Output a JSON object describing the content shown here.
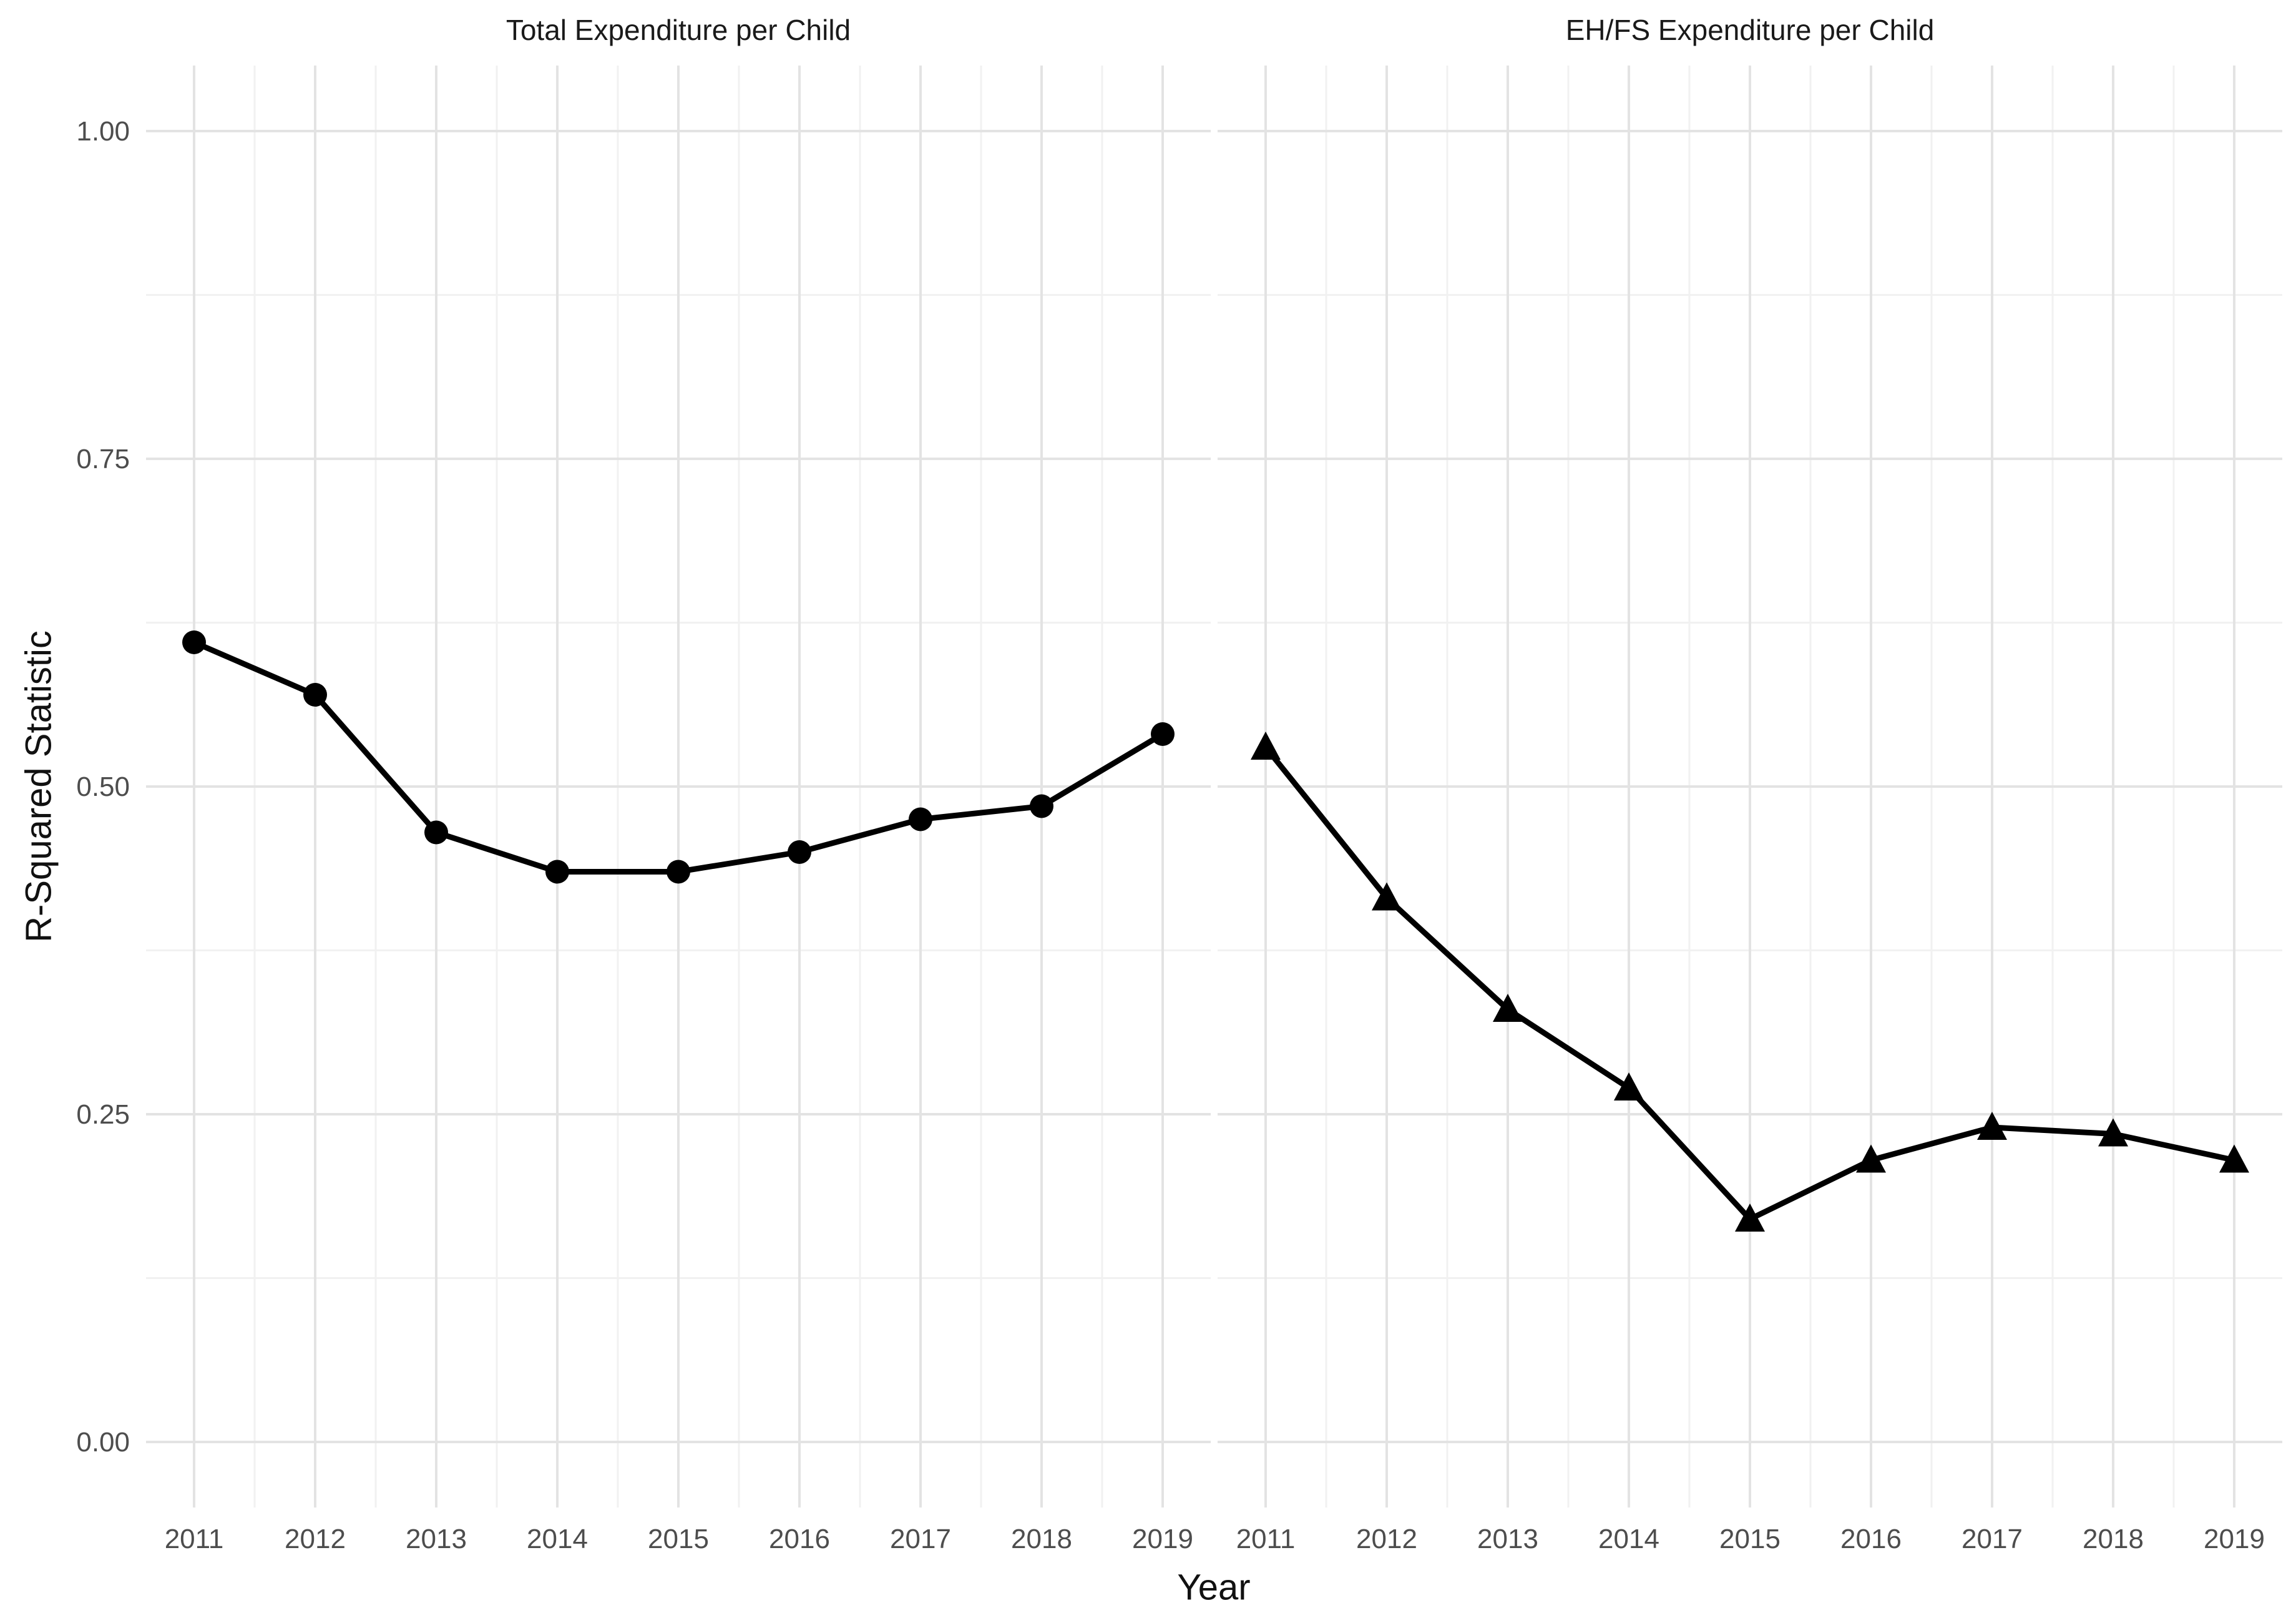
{
  "chart_data": {
    "type": "line",
    "title": "",
    "xlabel": "Year",
    "ylabel": "R-Squared Statistic",
    "facet_layout": "two panels side by side, shared y axis",
    "x_categories": [
      "2011",
      "2012",
      "2013",
      "2014",
      "2015",
      "2016",
      "2017",
      "2018",
      "2019"
    ],
    "y_ticks": [
      {
        "label": "1.00",
        "value": 1.0
      },
      {
        "label": "0.75",
        "value": 0.75
      },
      {
        "label": "0.50",
        "value": 0.5
      },
      {
        "label": "0.25",
        "value": 0.25
      },
      {
        "label": "0.00",
        "value": 0.0
      }
    ],
    "ylim": [
      0,
      1
    ],
    "grid": "major and minor, light gray, no axis lines, no ticks",
    "legend": "none",
    "series": [
      {
        "name": "Total Expenditure per Child",
        "panel": 0,
        "marker": "circle",
        "color": "#000000",
        "values": [
          0.61,
          0.57,
          0.465,
          0.435,
          0.435,
          0.45,
          0.475,
          0.485,
          0.54
        ]
      },
      {
        "name": "EH/FS Expenditure per Child",
        "panel": 1,
        "marker": "triangle",
        "color": "#000000",
        "values": [
          0.53,
          0.415,
          0.33,
          0.27,
          0.17,
          0.215,
          0.24,
          0.235,
          0.215
        ]
      }
    ],
    "colors": {
      "line": "#000000",
      "marker": "#000000",
      "grid_major": "#e3e3e3",
      "grid_minor": "#f1f1f1",
      "tick_label": "#4d4d4d",
      "strip_title": "#1a1a1a",
      "axis_title": "#111111",
      "background": "#ffffff"
    }
  }
}
